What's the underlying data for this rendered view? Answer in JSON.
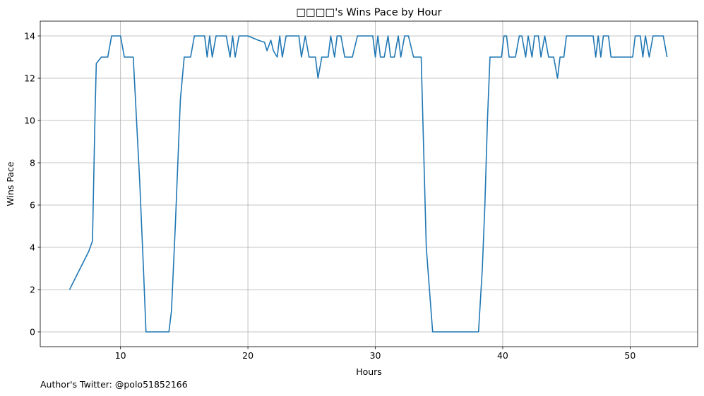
{
  "chart_data": {
    "type": "line",
    "title": "□□□□'s Wins Pace by Hour",
    "xlabel": "Hours",
    "ylabel": "Wins Pace",
    "xlim": [
      3.7,
      55.3
    ],
    "ylim": [
      -0.7,
      14.7
    ],
    "xticks": [
      10,
      20,
      30,
      40,
      50
    ],
    "yticks": [
      0,
      2,
      4,
      6,
      8,
      10,
      12,
      14
    ],
    "grid": true,
    "series": [
      {
        "color": "#1f77b4",
        "x": [
          6.0,
          6.5,
          7.0,
          7.5,
          7.8,
          8.0,
          8.1,
          8.5,
          9.0,
          9.3,
          9.6,
          10.0,
          10.3,
          10.6,
          11.0,
          11.5,
          11.8,
          12.0,
          12.5,
          13.0,
          13.5,
          13.8,
          14.0,
          14.3,
          14.7,
          15.0,
          15.3,
          15.5,
          15.8,
          16.0,
          16.3,
          16.6,
          16.8,
          17.0,
          17.2,
          17.5,
          17.8,
          18.0,
          18.3,
          18.6,
          18.8,
          19.0,
          19.3,
          19.6,
          20.0,
          20.4,
          20.8,
          21.3,
          21.5,
          21.8,
          22.0,
          22.3,
          22.5,
          22.7,
          23.0,
          23.3,
          23.6,
          24.0,
          24.2,
          24.5,
          24.8,
          25.0,
          25.3,
          25.5,
          25.8,
          26.0,
          26.3,
          26.5,
          26.8,
          27.0,
          27.3,
          27.6,
          27.9,
          28.2,
          28.6,
          29.0,
          29.3,
          29.6,
          29.8,
          30.0,
          30.2,
          30.4,
          30.7,
          31.0,
          31.2,
          31.5,
          31.8,
          32.0,
          32.3,
          32.6,
          33.0,
          33.3,
          33.6,
          33.8,
          34.0,
          34.5,
          35.0,
          36.0,
          37.0,
          37.5,
          37.8,
          38.1,
          38.4,
          38.6,
          38.8,
          39.0,
          39.3,
          39.6,
          39.9,
          40.1,
          40.3,
          40.5,
          40.8,
          41.0,
          41.3,
          41.5,
          41.8,
          42.0,
          42.3,
          42.5,
          42.8,
          43.0,
          43.3,
          43.6,
          43.8,
          44.0,
          44.3,
          44.5,
          44.8,
          45.0,
          45.3,
          45.6,
          45.9,
          46.2,
          46.5,
          46.8,
          47.1,
          47.3,
          47.5,
          47.7,
          47.9,
          48.1,
          48.3,
          48.5,
          48.8,
          49.0,
          49.3,
          49.6,
          49.9,
          50.2,
          50.4,
          50.6,
          50.8,
          51.0,
          51.2,
          51.5,
          51.8,
          52.0,
          52.3,
          52.6,
          52.9
        ],
        "y": [
          2.0,
          2.6,
          3.2,
          3.8,
          4.3,
          10.3,
          12.7,
          13.0,
          13.0,
          14.0,
          14.0,
          14.0,
          13.0,
          13.0,
          13.0,
          7.2,
          3.0,
          0.0,
          0.0,
          0.0,
          0.0,
          0.0,
          1.0,
          5.0,
          11.0,
          13.0,
          13.0,
          13.0,
          14.0,
          14.0,
          14.0,
          14.0,
          13.0,
          14.0,
          13.0,
          14.0,
          14.0,
          14.0,
          14.0,
          13.0,
          14.0,
          13.0,
          14.0,
          14.0,
          14.0,
          13.9,
          13.8,
          13.7,
          13.3,
          13.8,
          13.3,
          13.0,
          14.0,
          13.0,
          14.0,
          14.0,
          14.0,
          14.0,
          13.0,
          14.0,
          13.0,
          13.0,
          13.0,
          12.0,
          13.0,
          13.0,
          13.0,
          14.0,
          13.0,
          14.0,
          14.0,
          13.0,
          13.0,
          13.0,
          14.0,
          14.0,
          14.0,
          14.0,
          14.0,
          13.0,
          14.0,
          13.0,
          13.0,
          14.0,
          13.0,
          13.0,
          14.0,
          13.0,
          14.0,
          14.0,
          13.0,
          13.0,
          13.0,
          8.5,
          4.0,
          0.0,
          0.0,
          0.0,
          0.0,
          0.0,
          0.0,
          0.0,
          3.0,
          6.0,
          10.0,
          13.0,
          13.0,
          13.0,
          13.0,
          14.0,
          14.0,
          13.0,
          13.0,
          13.0,
          14.0,
          14.0,
          13.0,
          14.0,
          13.0,
          14.0,
          14.0,
          13.0,
          14.0,
          13.0,
          13.0,
          13.0,
          12.0,
          13.0,
          13.0,
          14.0,
          14.0,
          14.0,
          14.0,
          14.0,
          14.0,
          14.0,
          14.0,
          13.0,
          14.0,
          13.0,
          14.0,
          14.0,
          14.0,
          13.0,
          13.0,
          13.0,
          13.0,
          13.0,
          13.0,
          13.0,
          14.0,
          14.0,
          14.0,
          13.0,
          14.0,
          13.0,
          14.0,
          14.0,
          14.0,
          14.0,
          13.0
        ]
      }
    ]
  },
  "footer": {
    "text": "Author's Twitter: @polo51852166"
  }
}
